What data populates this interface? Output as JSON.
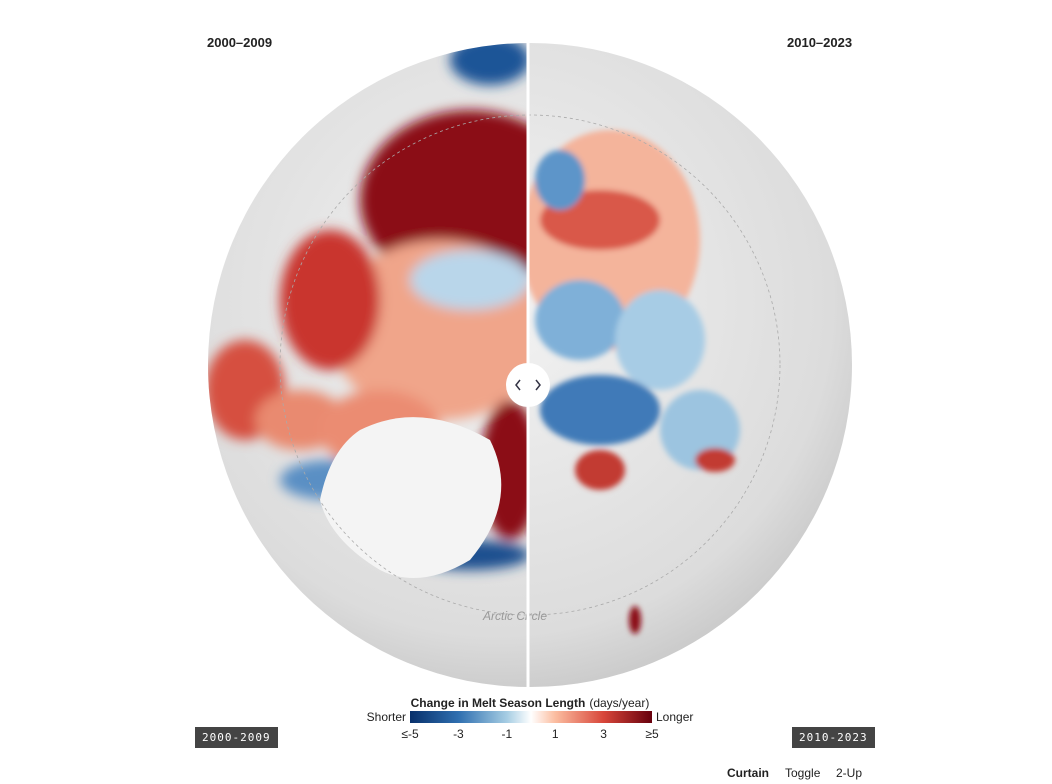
{
  "labels": {
    "left": "2000–2009",
    "right": "2010–2023"
  },
  "map": {
    "annotation": "Arctic Circle"
  },
  "legend": {
    "title": "Change in Melt Season Length",
    "unit": "(days/year)",
    "low": "Shorter",
    "high": "Longer",
    "ticks": [
      "≤-5",
      "-3",
      "-1",
      "1",
      "3",
      "≥5"
    ]
  },
  "badges": {
    "left": "2000-2009",
    "right": "2010-2023"
  },
  "controls": [
    "Curtain",
    "Toggle",
    "2-Up"
  ]
}
